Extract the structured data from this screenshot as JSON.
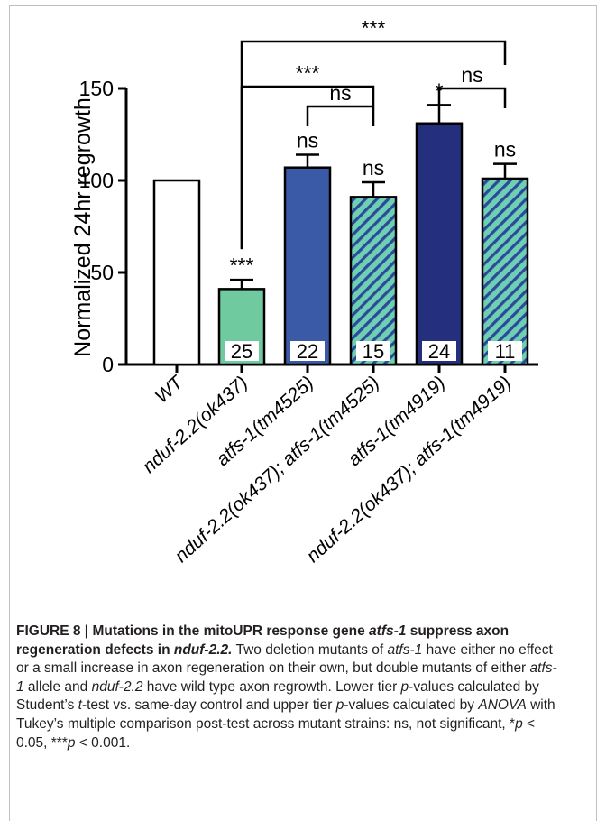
{
  "chart_data": {
    "type": "bar",
    "ylabel": "Normalized 24hr regrowth",
    "ylim": [
      0,
      150
    ],
    "yticks": [
      0,
      50,
      100,
      150
    ],
    "categories": [
      "WT",
      "nduf-2.2(ok437)",
      "atfs-1(tm4525)",
      "nduf-2.2(ok437); atfs-1(tm4525)",
      "atfs-1(tm4919)",
      "nduf-2.2(ok437); atfs-1(tm4919)"
    ],
    "values": [
      100,
      41,
      107,
      91,
      131,
      101
    ],
    "errors": [
      0,
      5,
      7,
      8,
      10,
      8
    ],
    "n_labels": [
      "",
      "25",
      "22",
      "15",
      "24",
      "11"
    ],
    "significance": [
      "",
      "***",
      "ns",
      "ns",
      "*",
      "ns"
    ],
    "comparisons": [
      {
        "from": 1,
        "to": 5,
        "label": "***"
      },
      {
        "from": 1,
        "to": 3,
        "label": "***"
      },
      {
        "from": 2,
        "to": 3,
        "label": "ns"
      },
      {
        "from": 4,
        "to": 5,
        "label": "ns"
      }
    ],
    "fills": [
      "#ffffff",
      "#6fcb9f",
      "#3a5aa8",
      "hatch-teal",
      "#24307e",
      "hatch-teal"
    ],
    "colors": {
      "hatch_base": "#6fcfb2",
      "hatch_line": "#2b4a9a",
      "axis": "#000000"
    }
  },
  "caption": {
    "fig_label": "FIGURE 8 | ",
    "title_1": "Mutations in the mitoUPR response gene ",
    "title_gene_1": "atfs-1",
    "title_2": " suppress axon regeneration defects in ",
    "title_gene_2": "nduf-2.2.",
    "s1": " Two deletion mutants of ",
    "s1_gene": "atfs-1",
    "s2": " have either no effect or a small increase in axon regeneration on their own, but double mutants of either ",
    "s2_gene": "atfs-1",
    "s3": " allele and ",
    "s3_gene": "nduf-2.2",
    "s4": " have wild type axon regrowth. Lower tier ",
    "p1": "p",
    "s5": "-values calculated by Student’s ",
    "t": "t",
    "s6": "-test vs. same-day control and upper tier ",
    "p2": "p",
    "s7": "-values calculated by ",
    "anova": "ANOVA",
    "s8": " with Tukey’s multiple comparison post-test across mutant strains: ns, not significant, *",
    "p3": "p",
    "s9": " < 0.05, ***",
    "p4": "p",
    "s10": " < 0.001."
  }
}
